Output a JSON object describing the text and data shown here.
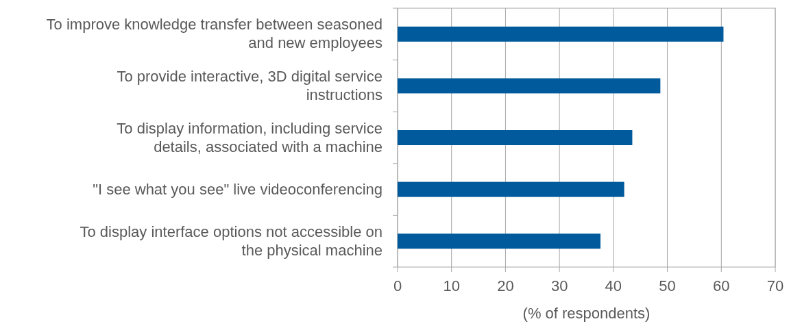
{
  "chart_data": {
    "type": "bar",
    "orientation": "horizontal",
    "categories": [
      "To improve knowledge transfer between seasoned and new employees",
      "To provide interactive, 3D digital service instructions",
      "To display information, including service details, associated with a machine",
      "\"I see what you see\" live videoconferencing",
      "To display interface options not accessible on the physical machine"
    ],
    "values": [
      60.4,
      48.7,
      43.5,
      42,
      37.6
    ],
    "color": "#005a9c",
    "xlim": [
      0,
      70
    ],
    "xticks": [
      0,
      10,
      20,
      30,
      40,
      50,
      60,
      70
    ],
    "xlabel": "(% of respondents)",
    "grid": "x"
  }
}
